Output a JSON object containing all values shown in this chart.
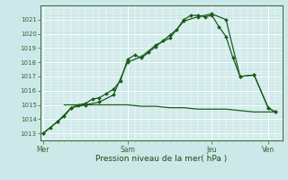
{
  "xlabel": "Pression niveau de la mer( hPa )",
  "bg_color": "#cce8e8",
  "grid_color": "#ffffff",
  "line_color": "#1a5c1a",
  "ylim": [
    1012.5,
    1022.0
  ],
  "yticks": [
    1013,
    1014,
    1015,
    1016,
    1017,
    1018,
    1019,
    1020,
    1021
  ],
  "day_labels": [
    "Mer",
    "Sam",
    "Jeu",
    "Ven"
  ],
  "day_positions": [
    0.0,
    3.0,
    6.0,
    8.0
  ],
  "xmin": -0.1,
  "xmax": 8.5,
  "series1_x": [
    0,
    0.25,
    0.5,
    0.75,
    1.0,
    1.25,
    1.5,
    1.75,
    2.0,
    2.25,
    2.5,
    2.75,
    3.0,
    3.25,
    3.5,
    3.75,
    4.0,
    4.25,
    4.5,
    4.75,
    5.0,
    5.25,
    5.5,
    5.75,
    6.0,
    6.25,
    6.5,
    6.75,
    7.0,
    7.5,
    8.0,
    8.25
  ],
  "series1_y": [
    1013.0,
    1013.4,
    1013.8,
    1014.2,
    1014.8,
    1015.0,
    1015.1,
    1015.4,
    1015.5,
    1015.8,
    1016.1,
    1016.7,
    1018.2,
    1018.5,
    1018.3,
    1018.7,
    1019.1,
    1019.5,
    1019.9,
    1020.3,
    1021.0,
    1021.3,
    1021.3,
    1021.2,
    1021.3,
    1020.5,
    1019.8,
    1018.3,
    1017.0,
    1017.1,
    1014.8,
    1014.5
  ],
  "series2_x": [
    0,
    0.5,
    1.0,
    1.5,
    2.0,
    2.5,
    3.0,
    3.5,
    4.0,
    4.5,
    5.0,
    5.5,
    6.0,
    6.5,
    7.0,
    7.5,
    8.0,
    8.25
  ],
  "series2_y": [
    1013.0,
    1013.8,
    1014.8,
    1015.0,
    1015.2,
    1015.7,
    1018.0,
    1018.4,
    1019.2,
    1019.7,
    1020.9,
    1021.2,
    1021.4,
    1021.0,
    1017.0,
    1017.1,
    1014.8,
    1014.5
  ],
  "series3_x": [
    0.75,
    1.0,
    1.5,
    2.0,
    2.5,
    3.0,
    3.5,
    4.0,
    4.5,
    5.0,
    5.5,
    6.0,
    6.5,
    7.0,
    7.5,
    8.0,
    8.25
  ],
  "series3_y": [
    1015.0,
    1015.0,
    1015.0,
    1015.0,
    1015.0,
    1015.0,
    1014.9,
    1014.9,
    1014.8,
    1014.8,
    1014.7,
    1014.7,
    1014.7,
    1014.6,
    1014.5,
    1014.5,
    1014.5
  ]
}
